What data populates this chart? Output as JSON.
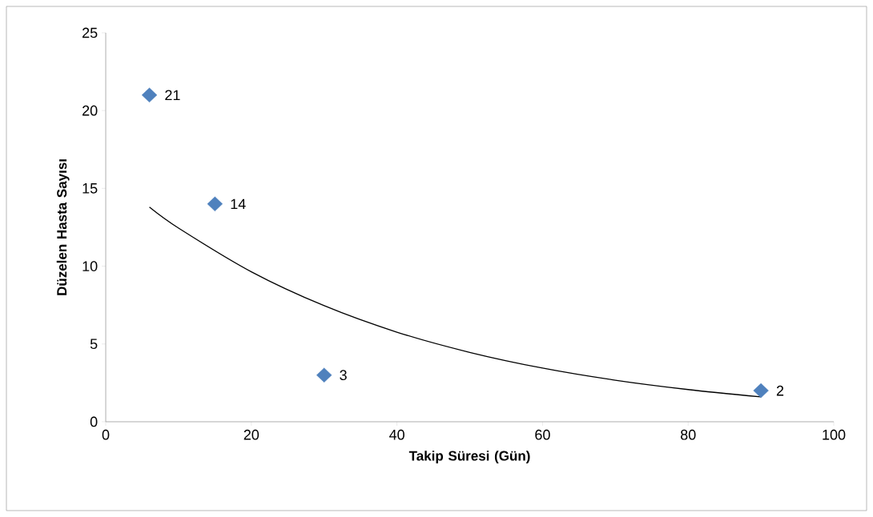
{
  "chart_data": {
    "type": "scatter",
    "xlabel": "Takip Süresi (Gün)",
    "ylabel": "Düzelen Hasta Sayısı",
    "series": [
      {
        "color": "#4f81bd",
        "marker": "diamond",
        "data_labels": true,
        "x": [
          6,
          15,
          30,
          90
        ],
        "values": [
          21,
          14,
          3,
          2
        ]
      },
      {
        "type": "line",
        "color": "#000000",
        "marker": "none",
        "x": [
          6,
          10,
          20,
          30,
          40,
          50,
          60,
          70,
          80,
          90
        ],
        "values": [
          13.8,
          12.45,
          9.64,
          7.46,
          5.76,
          4.46,
          3.45,
          2.67,
          2.07,
          1.6
        ]
      }
    ],
    "xlim": [
      0,
      100
    ],
    "xticks": [
      0,
      20,
      40,
      60,
      80,
      100
    ],
    "ylim": [
      0,
      25
    ],
    "yticks": [
      0,
      5,
      10,
      15,
      20,
      25
    ],
    "grid": false
  }
}
